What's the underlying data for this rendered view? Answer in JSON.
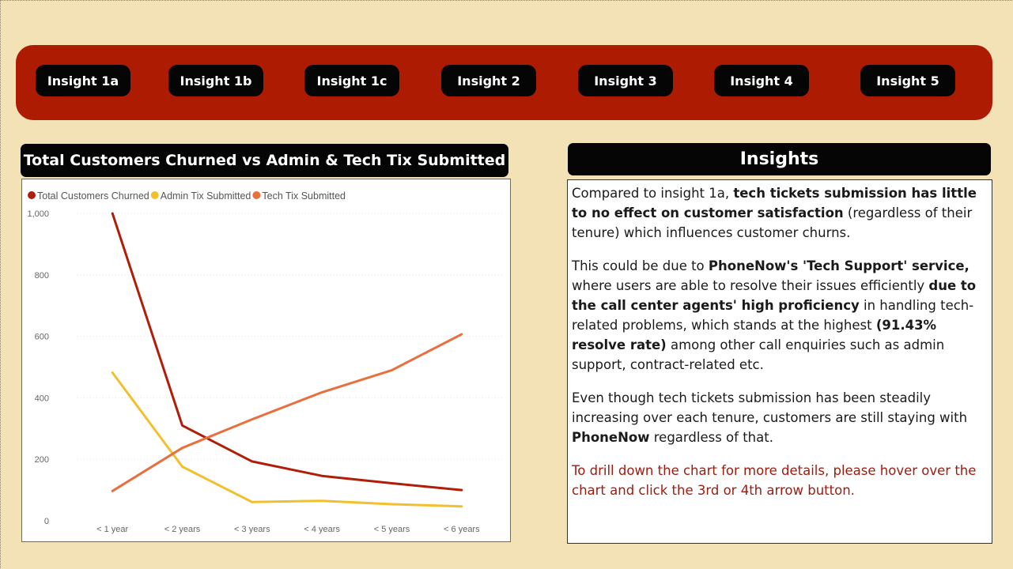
{
  "nav": {
    "buttons": [
      "Insight 1a",
      "Insight 1b",
      "Insight 1c",
      "Insight 2",
      "Insight 3",
      "Insight 4",
      "Insight 5"
    ]
  },
  "colors": {
    "background": "#f2e2b6",
    "nav_bar": "#ad1c02",
    "button": "#050505",
    "series_churned": "#b01e0a",
    "series_admin": "#f2c02d",
    "series_tech": "#e8703e"
  },
  "chart_title": "Total Customers Churned vs Admin & Tech Tix Submitted",
  "chart_data": {
    "type": "line",
    "title": "Total Customers Churned vs Admin & Tech Tix Submitted",
    "legend_position": "top-left",
    "grid": true,
    "x": [
      "< 1 year",
      "< 2 years",
      "< 3 years",
      "< 4 years",
      "< 5 years",
      "< 6 years"
    ],
    "ylim": [
      0,
      1000
    ],
    "yticks": [
      "0",
      "200",
      "400",
      "600",
      "800",
      "1,000"
    ],
    "series": [
      {
        "name": "Total Customers Churned",
        "color": "#b01e0a",
        "values": [
          1000,
          310,
          193,
          146,
          122,
          100
        ]
      },
      {
        "name": "Admin Tix Submitted",
        "color": "#f2c02d",
        "values": [
          482,
          176,
          61,
          65,
          54,
          47
        ]
      },
      {
        "name": "Tech Tix Submitted",
        "color": "#e8703e",
        "values": [
          97,
          237,
          330,
          418,
          490,
          607
        ]
      }
    ]
  },
  "insights": {
    "title": "Insights",
    "p1_a": "Compared to insight 1a, ",
    "p1_b": "tech tickets submission has little to no effect on customer satisfaction",
    "p1_c": " (regardless of their tenure) which influences customer churns.",
    "p2_a": "This could be due to ",
    "p2_b": "PhoneNow's 'Tech Support' service,",
    "p2_c": " where users are able to resolve their issues efficiently ",
    "p2_d": "due to the call center agents' high proficiency",
    "p2_e": " in handling tech-related problems, which stands at the highest ",
    "p2_f": "(91.43% resolve rate)",
    "p2_g": " among other call enquiries such as admin support, contract-related etc.",
    "p3_a": "Even though tech tickets submission has been steadily increasing over each tenure, customers are still staying with ",
    "p3_b": "PhoneNow",
    "p3_c": " regardless of that.",
    "cta": "To drill down the chart for more details, please hover over the chart and click the 3rd or 4th arrow button."
  }
}
